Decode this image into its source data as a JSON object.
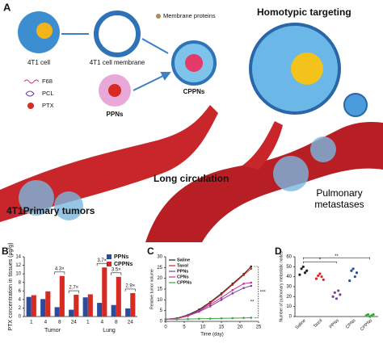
{
  "figure": {
    "panel": "A",
    "labels": {
      "cell": "4T1 cell",
      "membrane": "4T1 cell membrane",
      "proteins": "Membrane proteins",
      "targeting": "Homotypic targeting",
      "f68": "F68",
      "pcl": "PCL",
      "ptx": "PTX",
      "ppns": "PPNs",
      "cppns": "CPPNs",
      "circulation": "Long circulation",
      "tumors": "4T1Primary tumors",
      "metastases": "Pulmonary metastases"
    }
  },
  "chart_data": [
    {
      "type": "bar",
      "panel": "B",
      "ylabel": "PTX concentration in tissues (μg/g)",
      "categories": [
        "1",
        "4",
        "8",
        "24",
        "1",
        "4",
        "8",
        "24"
      ],
      "groups": [
        "Tumor",
        "Lung"
      ],
      "series": [
        {
          "name": "PPNs",
          "color": "#2b4c9c",
          "values": [
            4.6,
            4.1,
            2.2,
            1.6,
            4.5,
            3.2,
            2.7,
            1.9
          ]
        },
        {
          "name": "CPPNs",
          "color": "#d62a22",
          "values": [
            5.0,
            5.9,
            9.5,
            5.1,
            5.2,
            11.5,
            9.3,
            5.5
          ]
        }
      ],
      "annotations": [
        "4.3×",
        "2.7×",
        "3.7×",
        "3.5×",
        "2.9×"
      ],
      "ylim": [
        0,
        14
      ],
      "yticks": [
        0,
        2,
        4,
        6,
        8,
        10,
        12,
        14
      ]
    },
    {
      "type": "line",
      "panel": "C",
      "ylabel": "Relative tumor volume",
      "xlabel": "Time (day)",
      "x": [
        0,
        3,
        6,
        9,
        12,
        15,
        18,
        21,
        23
      ],
      "series": [
        {
          "name": "Saline",
          "color": "#222222",
          "values": [
            1,
            1.5,
            3,
            5.5,
            9,
            13,
            17.5,
            22,
            25.5
          ]
        },
        {
          "name": "Taxol",
          "color": "#d62a22",
          "values": [
            1,
            1.4,
            2.8,
            5,
            8.5,
            12.5,
            17,
            21.5,
            24.5
          ]
        },
        {
          "name": "PPNs",
          "color": "#7b3fa0",
          "values": [
            1,
            1.3,
            2.5,
            4.5,
            7,
            10,
            13,
            15.5,
            16.5
          ]
        },
        {
          "name": "CPNs",
          "color": "#c8329a",
          "values": [
            1,
            1.3,
            2.6,
            4.8,
            7.8,
            11,
            14.5,
            17.5,
            18
          ]
        },
        {
          "name": "CPPNs",
          "color": "#3aa640",
          "values": [
            1,
            1,
            1.1,
            1.2,
            1.3,
            1.4,
            1.5,
            1.6,
            1.7
          ]
        }
      ],
      "annotations": [
        "***",
        "**"
      ],
      "xlim": [
        0,
        25
      ],
      "xticks": [
        0,
        5,
        10,
        15,
        20,
        25
      ],
      "ylim": [
        0,
        30
      ],
      "yticks": [
        0,
        5,
        10,
        15,
        20,
        25,
        30
      ]
    },
    {
      "type": "scatter",
      "panel": "D",
      "ylabel": "Number of pulmonary metastatic nodes",
      "categories": [
        "Saline",
        "Taxol",
        "PPNs",
        "CPNs",
        "CPPNs"
      ],
      "colors": [
        "#222222",
        "#d62a22",
        "#7b3fa0",
        "#2b4c9c",
        "#3aa640"
      ],
      "values": [
        [
          42,
          48,
          50,
          44,
          46
        ],
        [
          38,
          41,
          43,
          40,
          37
        ],
        [
          20,
          24,
          18,
          26,
          22
        ],
        [
          36,
          46,
          48,
          40,
          44
        ],
        [
          1,
          2,
          0,
          1,
          2
        ]
      ],
      "annotations": [
        "*",
        "**"
      ],
      "ylim": [
        0,
        60
      ],
      "yticks": [
        0,
        10,
        20,
        30,
        40,
        50,
        60
      ]
    }
  ]
}
